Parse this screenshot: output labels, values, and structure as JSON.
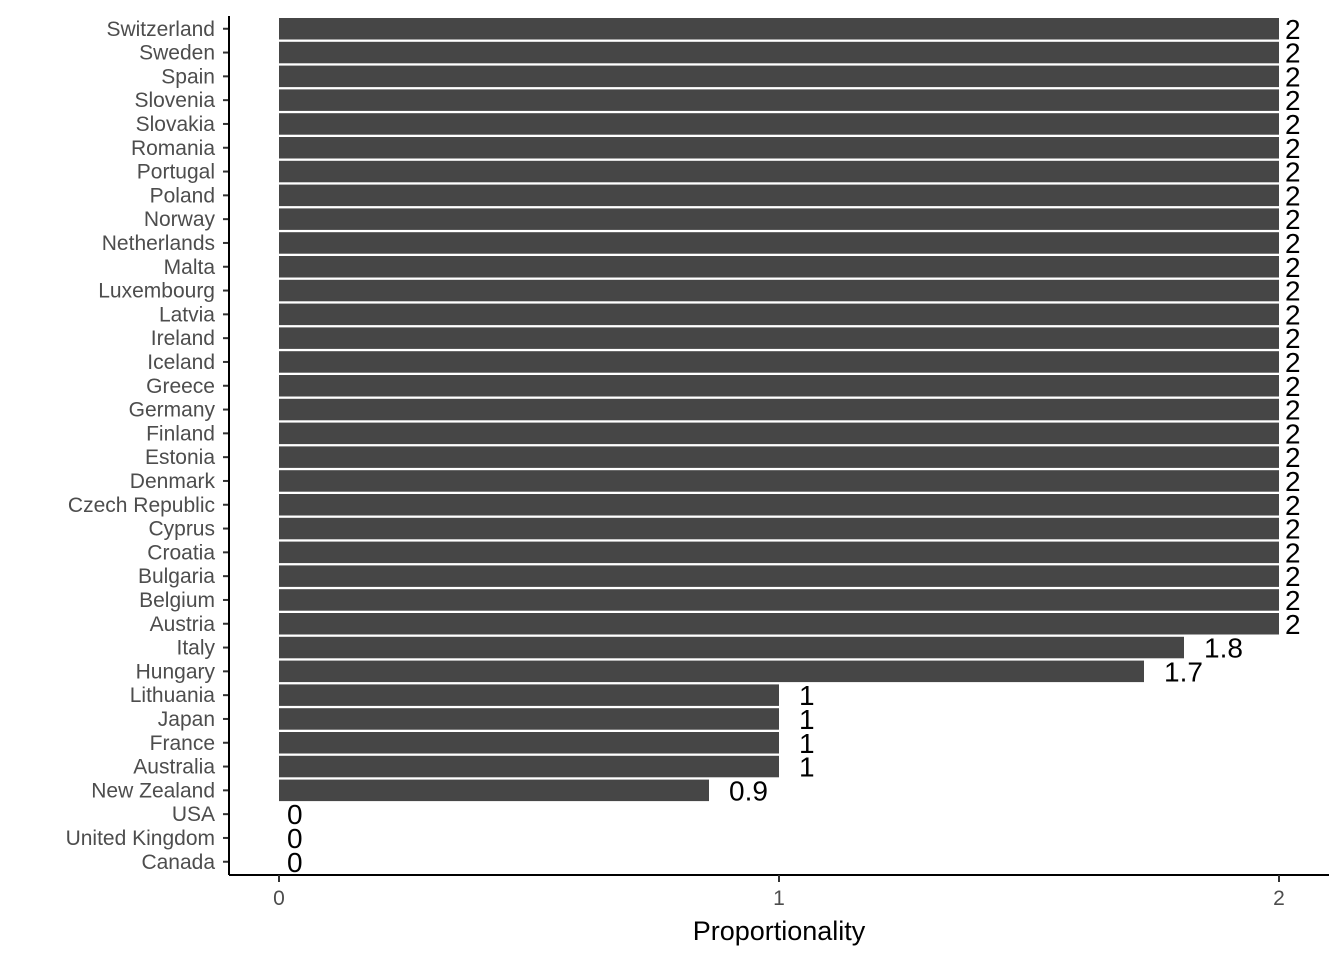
{
  "chart_data": {
    "type": "bar",
    "orientation": "horizontal",
    "title": "",
    "xlabel": "Proportionality",
    "ylabel": "",
    "xlim": [
      -0.1,
      2.1
    ],
    "xticks": [
      0,
      1,
      2
    ],
    "xtick_labels": [
      "0",
      "1",
      "2"
    ],
    "grid": false,
    "bar_color": "#464646",
    "categories": [
      "Switzerland",
      "Sweden",
      "Spain",
      "Slovenia",
      "Slovakia",
      "Romania",
      "Portugal",
      "Poland",
      "Norway",
      "Netherlands",
      "Malta",
      "Luxembourg",
      "Latvia",
      "Ireland",
      "Iceland",
      "Greece",
      "Germany",
      "Finland",
      "Estonia",
      "Denmark",
      "Czech Republic",
      "Cyprus",
      "Croatia",
      "Bulgaria",
      "Belgium",
      "Austria",
      "Italy",
      "Hungary",
      "Lithuania",
      "Japan",
      "France",
      "Australia",
      "New Zealand",
      "USA",
      "United Kingdom",
      "Canada"
    ],
    "values": [
      2,
      2,
      2,
      2,
      2,
      2,
      2,
      2,
      2,
      2,
      2,
      2,
      2,
      2,
      2,
      2,
      2,
      2,
      2,
      2,
      2,
      2,
      2,
      2,
      2,
      2,
      1.81,
      1.73,
      1,
      1,
      1,
      1,
      0.86,
      0,
      0,
      0
    ],
    "data_labels": [
      "2",
      "2",
      "2",
      "2",
      "2",
      "2",
      "2",
      "2",
      "2",
      "2",
      "2",
      "2",
      "2",
      "2",
      "2",
      "2",
      "2",
      "2",
      "2",
      "2",
      "2",
      "2",
      "2",
      "2",
      "2",
      "2",
      "1.8",
      "1.7",
      "1",
      "1",
      "1",
      "1",
      "0.9",
      "0",
      "0",
      "0"
    ]
  }
}
